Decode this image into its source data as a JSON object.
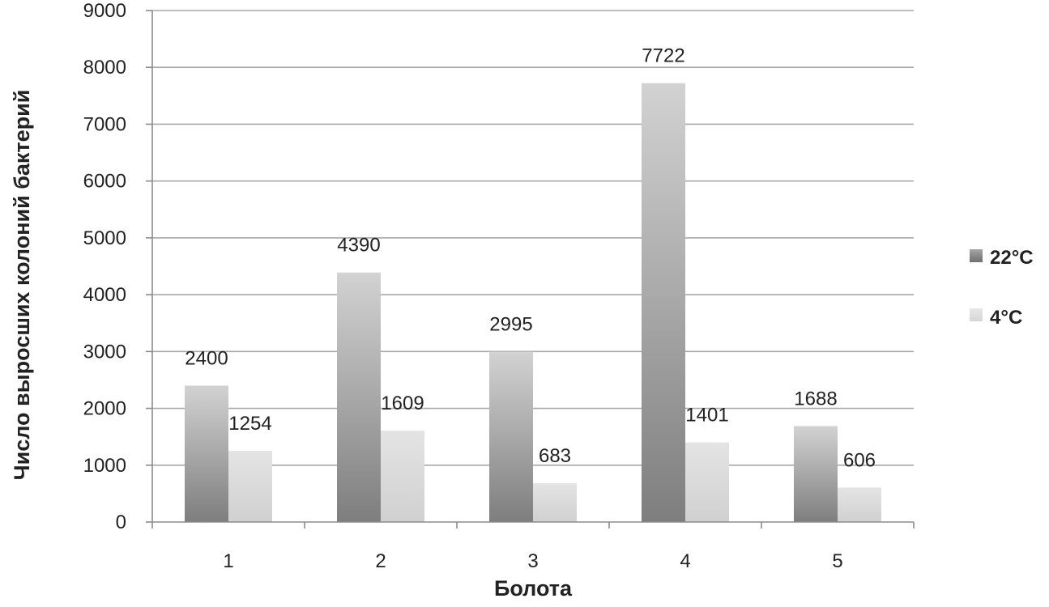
{
  "chart_data": {
    "type": "bar",
    "title": "",
    "xlabel": "Болота",
    "ylabel": "Число выросших колоний бактерий",
    "categories": [
      "1",
      "2",
      "3",
      "4",
      "5"
    ],
    "series": [
      {
        "name": "22°C",
        "values": [
          2400,
          4390,
          2995,
          7722,
          1688
        ],
        "color": "#8a8a8a"
      },
      {
        "name": "4°C",
        "values": [
          1254,
          1609,
          683,
          1401,
          606
        ],
        "color": "#dcdcdc"
      }
    ],
    "ylim": [
      0,
      9000
    ],
    "yticks": [
      0,
      1000,
      2000,
      3000,
      4000,
      5000,
      6000,
      7000,
      8000,
      9000
    ],
    "grid": true,
    "legend_position": "right",
    "data_labels": true
  }
}
